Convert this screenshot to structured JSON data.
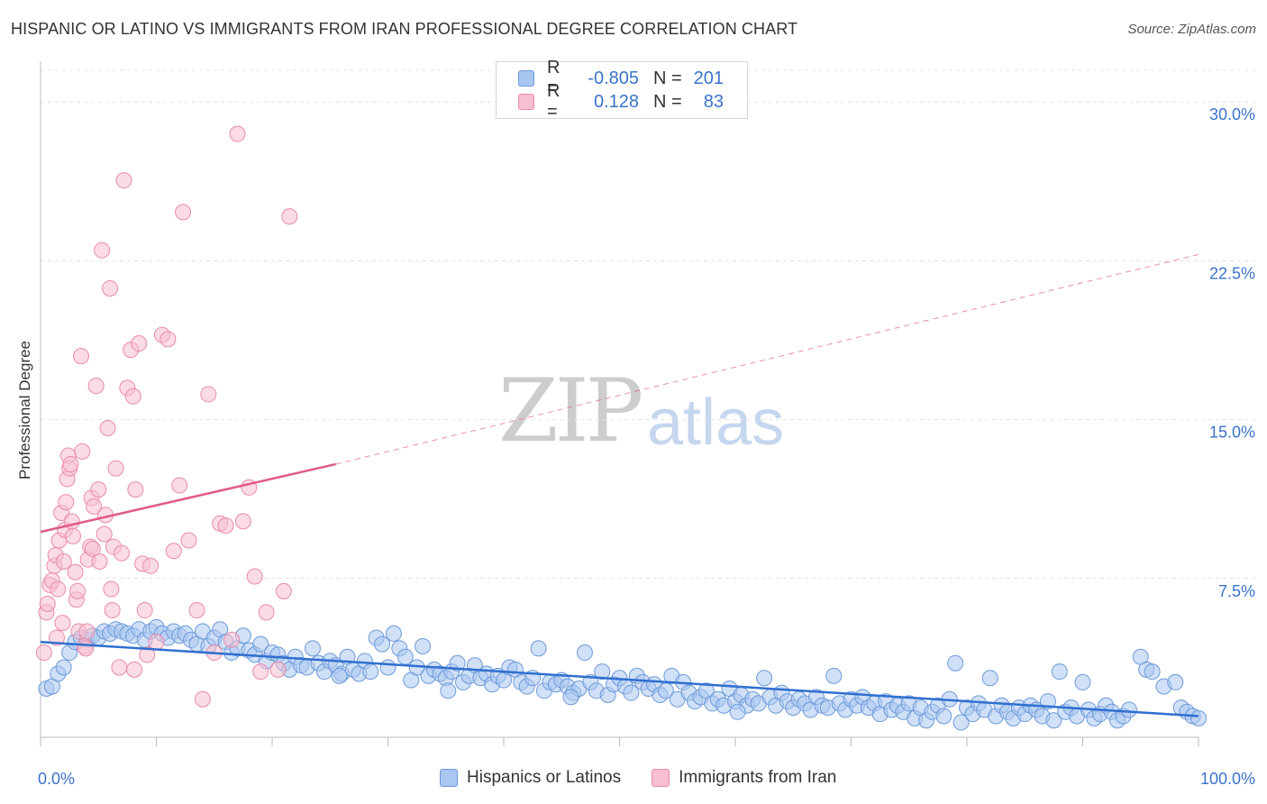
{
  "header": {
    "title": "HISPANIC OR LATINO VS IMMIGRANTS FROM IRAN PROFESSIONAL DEGREE CORRELATION CHART",
    "source": "Source: ZipAtlas.com"
  },
  "watermark": {
    "part1": "ZIP",
    "part2": "atlas"
  },
  "legend_top": {
    "rows": [
      {
        "r_label": "R =",
        "r_value": "-0.805",
        "n_label": "N =",
        "n_value": "201",
        "color": "#a9c6f0",
        "stroke": "#6d9ad9"
      },
      {
        "r_label": "R =",
        "r_value": "0.128",
        "n_label": "N =",
        "n_value": "83",
        "color": "#f7bfd0",
        "stroke": "#e98aa9"
      }
    ]
  },
  "legend_bottom": [
    {
      "label": "Hispanics or Latinos",
      "color": "#a9c6f0",
      "stroke": "#6d9ad9"
    },
    {
      "label": "Immigrants from Iran",
      "color": "#f7bfd0",
      "stroke": "#e98aa9"
    }
  ],
  "chart_data": {
    "type": "scatter",
    "title": "HISPANIC OR LATINO VS IMMIGRANTS FROM IRAN PROFESSIONAL DEGREE CORRELATION CHART",
    "xlabel": "",
    "ylabel": "Professional Degree",
    "xlim": [
      0,
      100
    ],
    "ylim": [
      0,
      31.5
    ],
    "x_tick_labels": [
      "0.0%",
      "100.0%"
    ],
    "y_ticks": [
      7.5,
      15.0,
      22.5,
      30.0
    ],
    "y_tick_labels": [
      "7.5%",
      "15.0%",
      "22.5%",
      "30.0%"
    ],
    "grid": true,
    "legend_position": "top-center",
    "series": [
      {
        "name": "Hispanics or Latinos",
        "color": "#a9c6f0",
        "stroke": "#6d9ad9",
        "trend": {
          "x": [
            0,
            100
          ],
          "y": [
            4.5,
            1.0
          ],
          "color": "#2f6fd0",
          "style": "solid"
        },
        "points": [
          [
            0.5,
            2.3
          ],
          [
            1,
            2.4
          ],
          [
            1.5,
            3.0
          ],
          [
            2,
            3.3
          ],
          [
            2.5,
            4.0
          ],
          [
            3,
            4.5
          ],
          [
            3.5,
            4.7
          ],
          [
            4,
            4.6
          ],
          [
            4.5,
            4.8
          ],
          [
            5,
            4.7
          ],
          [
            5.5,
            5.0
          ],
          [
            6,
            4.9
          ],
          [
            6.5,
            5.1
          ],
          [
            7,
            5.0
          ],
          [
            7.5,
            4.9
          ],
          [
            8,
            4.8
          ],
          [
            8.5,
            5.1
          ],
          [
            9,
            4.6
          ],
          [
            9.5,
            5.0
          ],
          [
            10,
            5.2
          ],
          [
            10.5,
            4.9
          ],
          [
            11,
            4.7
          ],
          [
            11.5,
            5.0
          ],
          [
            12,
            4.8
          ],
          [
            12.5,
            4.9
          ],
          [
            13,
            4.6
          ],
          [
            13.5,
            4.4
          ],
          [
            14,
            5.0
          ],
          [
            14.5,
            4.3
          ],
          [
            15,
            4.7
          ],
          [
            15.5,
            5.1
          ],
          [
            16,
            4.5
          ],
          [
            16.5,
            4.0
          ],
          [
            17,
            4.2
          ],
          [
            17.5,
            4.8
          ],
          [
            18,
            4.1
          ],
          [
            18.5,
            3.9
          ],
          [
            19,
            4.4
          ],
          [
            19.5,
            3.6
          ],
          [
            20,
            4.0
          ],
          [
            20.5,
            3.9
          ],
          [
            21,
            3.5
          ],
          [
            21.5,
            3.2
          ],
          [
            22,
            3.8
          ],
          [
            22.5,
            3.4
          ],
          [
            23,
            3.3
          ],
          [
            23.5,
            4.2
          ],
          [
            24,
            3.5
          ],
          [
            24.5,
            3.1
          ],
          [
            25,
            3.6
          ],
          [
            25.5,
            3.4
          ],
          [
            26,
            3.0
          ],
          [
            26.5,
            3.8
          ],
          [
            27,
            3.2
          ],
          [
            27.5,
            3.0
          ],
          [
            28,
            3.6
          ],
          [
            28.5,
            3.1
          ],
          [
            29,
            4.7
          ],
          [
            29.5,
            4.4
          ],
          [
            30,
            3.3
          ],
          [
            30.5,
            4.9
          ],
          [
            31,
            4.2
          ],
          [
            31.5,
            3.8
          ],
          [
            32,
            2.7
          ],
          [
            32.5,
            3.3
          ],
          [
            33,
            4.3
          ],
          [
            33.5,
            2.9
          ],
          [
            34,
            3.2
          ],
          [
            34.5,
            3.0
          ],
          [
            35,
            2.8
          ],
          [
            35.5,
            3.1
          ],
          [
            36,
            3.5
          ],
          [
            36.5,
            2.6
          ],
          [
            37,
            2.9
          ],
          [
            37.5,
            3.4
          ],
          [
            38,
            2.8
          ],
          [
            38.5,
            3.0
          ],
          [
            39,
            2.5
          ],
          [
            39.5,
            2.9
          ],
          [
            40,
            2.7
          ],
          [
            40.5,
            3.3
          ],
          [
            41,
            3.2
          ],
          [
            41.5,
            2.6
          ],
          [
            42,
            2.4
          ],
          [
            42.5,
            2.8
          ],
          [
            43,
            4.2
          ],
          [
            43.5,
            2.2
          ],
          [
            44,
            2.6
          ],
          [
            44.5,
            2.5
          ],
          [
            45,
            2.7
          ],
          [
            45.5,
            2.4
          ],
          [
            46,
            2.1
          ],
          [
            46.5,
            2.3
          ],
          [
            47,
            4.0
          ],
          [
            47.5,
            2.6
          ],
          [
            48,
            2.2
          ],
          [
            48.5,
            3.1
          ],
          [
            49,
            2.0
          ],
          [
            49.5,
            2.5
          ],
          [
            50,
            2.8
          ],
          [
            50.5,
            2.4
          ],
          [
            51,
            2.1
          ],
          [
            51.5,
            2.9
          ],
          [
            52,
            2.6
          ],
          [
            52.5,
            2.3
          ],
          [
            53,
            2.5
          ],
          [
            53.5,
            2.0
          ],
          [
            54,
            2.2
          ],
          [
            54.5,
            2.9
          ],
          [
            55,
            1.8
          ],
          [
            55.5,
            2.6
          ],
          [
            56,
            2.1
          ],
          [
            56.5,
            1.7
          ],
          [
            57,
            1.9
          ],
          [
            57.5,
            2.2
          ],
          [
            58,
            1.6
          ],
          [
            58.5,
            1.8
          ],
          [
            59,
            1.5
          ],
          [
            59.5,
            2.3
          ],
          [
            60,
            1.7
          ],
          [
            60.5,
            2.0
          ],
          [
            61,
            1.5
          ],
          [
            61.5,
            1.8
          ],
          [
            62,
            1.6
          ],
          [
            62.5,
            2.8
          ],
          [
            63,
            1.9
          ],
          [
            63.5,
            1.5
          ],
          [
            64,
            2.1
          ],
          [
            64.5,
            1.7
          ],
          [
            65,
            1.4
          ],
          [
            65.5,
            1.8
          ],
          [
            66,
            1.6
          ],
          [
            66.5,
            1.3
          ],
          [
            67,
            1.9
          ],
          [
            67.5,
            1.5
          ],
          [
            68,
            1.4
          ],
          [
            68.5,
            2.9
          ],
          [
            69,
            1.6
          ],
          [
            69.5,
            1.3
          ],
          [
            70,
            1.8
          ],
          [
            70.5,
            1.5
          ],
          [
            71,
            1.9
          ],
          [
            71.5,
            1.4
          ],
          [
            72,
            1.6
          ],
          [
            72.5,
            1.1
          ],
          [
            73,
            1.7
          ],
          [
            73.5,
            1.3
          ],
          [
            74,
            1.5
          ],
          [
            74.5,
            1.2
          ],
          [
            75,
            1.6
          ],
          [
            75.5,
            0.9
          ],
          [
            76,
            1.4
          ],
          [
            76.5,
            0.8
          ],
          [
            77,
            1.2
          ],
          [
            77.5,
            1.5
          ],
          [
            78,
            1.0
          ],
          [
            78.5,
            1.8
          ],
          [
            79,
            3.5
          ],
          [
            79.5,
            0.7
          ],
          [
            80,
            1.4
          ],
          [
            80.5,
            1.1
          ],
          [
            81,
            1.6
          ],
          [
            81.5,
            1.3
          ],
          [
            82,
            2.8
          ],
          [
            82.5,
            1.0
          ],
          [
            83,
            1.5
          ],
          [
            83.5,
            1.2
          ],
          [
            84,
            0.9
          ],
          [
            84.5,
            1.4
          ],
          [
            85,
            1.1
          ],
          [
            85.5,
            1.5
          ],
          [
            86,
            1.3
          ],
          [
            86.5,
            1.0
          ],
          [
            87,
            1.7
          ],
          [
            87.5,
            0.8
          ],
          [
            88,
            3.1
          ],
          [
            88.5,
            1.2
          ],
          [
            89,
            1.4
          ],
          [
            89.5,
            1.0
          ],
          [
            90,
            2.6
          ],
          [
            90.5,
            1.3
          ],
          [
            91,
            0.9
          ],
          [
            91.5,
            1.1
          ],
          [
            92,
            1.5
          ],
          [
            92.5,
            1.2
          ],
          [
            93,
            0.8
          ],
          [
            93.5,
            1.0
          ],
          [
            94,
            1.3
          ],
          [
            95,
            3.8
          ],
          [
            95.5,
            3.2
          ],
          [
            96,
            3.1
          ],
          [
            97,
            2.4
          ],
          [
            98,
            2.6
          ],
          [
            98.5,
            1.4
          ],
          [
            99,
            1.2
          ],
          [
            99.5,
            1.0
          ],
          [
            100,
            0.9
          ],
          [
            60.2,
            1.2
          ],
          [
            45.8,
            1.9
          ],
          [
            35.2,
            2.2
          ],
          [
            25.8,
            2.9
          ]
        ]
      },
      {
        "name": "Immigrants from Iran",
        "color": "#f7bfd0",
        "stroke": "#e98aa9",
        "trend": {
          "x": [
            0,
            25.5,
            100
          ],
          "y": [
            9.7,
            12.9,
            22.8
          ],
          "color": "#e05b8a",
          "style": "solid-then-dashed",
          "solid_until": 25.5
        },
        "points": [
          [
            0.3,
            4.0
          ],
          [
            0.5,
            5.9
          ],
          [
            0.6,
            6.3
          ],
          [
            0.8,
            7.2
          ],
          [
            1,
            7.4
          ],
          [
            1.2,
            8.1
          ],
          [
            1.3,
            8.6
          ],
          [
            1.5,
            7.0
          ],
          [
            1.6,
            9.3
          ],
          [
            1.8,
            10.6
          ],
          [
            1.9,
            5.4
          ],
          [
            2.0,
            8.3
          ],
          [
            2.1,
            9.8
          ],
          [
            2.2,
            11.1
          ],
          [
            2.3,
            12.2
          ],
          [
            2.4,
            13.3
          ],
          [
            2.5,
            12.7
          ],
          [
            2.6,
            12.9
          ],
          [
            2.7,
            10.2
          ],
          [
            2.8,
            9.5
          ],
          [
            3.0,
            7.8
          ],
          [
            3.1,
            6.5
          ],
          [
            3.2,
            6.9
          ],
          [
            3.3,
            5.0
          ],
          [
            3.5,
            18.0
          ],
          [
            3.6,
            13.5
          ],
          [
            3.8,
            4.3
          ],
          [
            4.0,
            5.0
          ],
          [
            4.1,
            8.4
          ],
          [
            4.3,
            9.0
          ],
          [
            4.4,
            11.3
          ],
          [
            4.5,
            8.9
          ],
          [
            4.6,
            10.9
          ],
          [
            4.8,
            16.6
          ],
          [
            5.0,
            11.7
          ],
          [
            5.1,
            8.3
          ],
          [
            5.3,
            23.0
          ],
          [
            5.5,
            9.6
          ],
          [
            5.6,
            10.5
          ],
          [
            5.8,
            14.6
          ],
          [
            6.0,
            21.2
          ],
          [
            6.1,
            7.0
          ],
          [
            6.2,
            6.0
          ],
          [
            6.3,
            9.0
          ],
          [
            6.5,
            12.7
          ],
          [
            6.8,
            3.3
          ],
          [
            7.0,
            8.7
          ],
          [
            7.2,
            26.3
          ],
          [
            7.5,
            16.5
          ],
          [
            7.8,
            18.3
          ],
          [
            8.0,
            16.1
          ],
          [
            8.2,
            11.7
          ],
          [
            8.5,
            18.6
          ],
          [
            8.8,
            8.2
          ],
          [
            9.0,
            6.0
          ],
          [
            9.2,
            3.9
          ],
          [
            9.5,
            8.1
          ],
          [
            10.0,
            4.5
          ],
          [
            10.5,
            19.0
          ],
          [
            11.0,
            18.8
          ],
          [
            11.5,
            8.8
          ],
          [
            12.0,
            11.9
          ],
          [
            12.3,
            24.8
          ],
          [
            12.8,
            9.3
          ],
          [
            13.5,
            6.0
          ],
          [
            14.0,
            1.8
          ],
          [
            14.5,
            16.2
          ],
          [
            15.0,
            4.0
          ],
          [
            15.5,
            10.1
          ],
          [
            16.0,
            10.0
          ],
          [
            16.5,
            4.6
          ],
          [
            17.5,
            10.2
          ],
          [
            18.0,
            11.8
          ],
          [
            18.5,
            7.6
          ],
          [
            19.0,
            3.1
          ],
          [
            19.5,
            5.9
          ],
          [
            20.5,
            3.2
          ],
          [
            21.0,
            6.9
          ],
          [
            21.5,
            24.6
          ],
          [
            17.0,
            28.5
          ],
          [
            8.1,
            3.2
          ],
          [
            3.9,
            4.2
          ],
          [
            1.4,
            4.7
          ]
        ]
      }
    ]
  }
}
